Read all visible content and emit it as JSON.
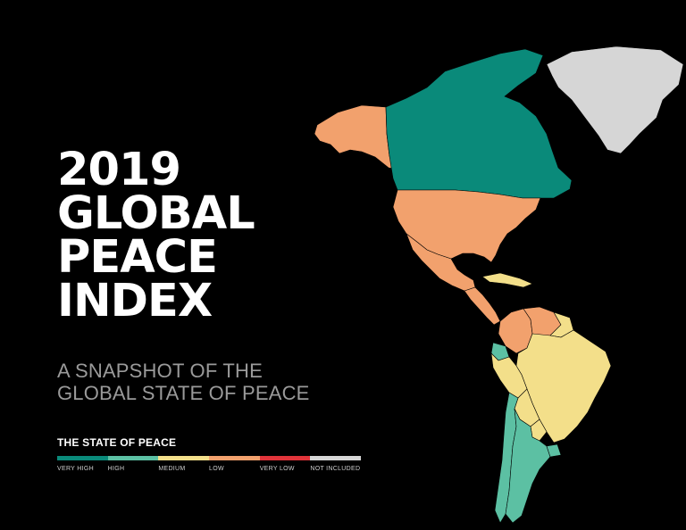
{
  "title": {
    "lines": [
      "2019",
      "GLOBAL",
      "PEACE",
      "INDEX"
    ]
  },
  "subtitle": {
    "lines": [
      "A SNAPSHOT OF THE",
      "GLOBAL STATE OF PEACE"
    ]
  },
  "legend": {
    "title": "THE STATE OF PEACE",
    "levels": [
      {
        "label": "VERY HIGH",
        "color": "#0a8a7a"
      },
      {
        "label": "HIGH",
        "color": "#5cc0a3"
      },
      {
        "label": "MEDIUM",
        "color": "#f3df8a"
      },
      {
        "label": "LOW",
        "color": "#f2a16d"
      },
      {
        "label": "VERY LOW",
        "color": "#e0343a"
      },
      {
        "label": "NOT INCLUDED",
        "color": "#d6d6d6"
      }
    ]
  },
  "regions": [
    {
      "name": "Canada",
      "level": "VERY HIGH"
    },
    {
      "name": "Greenland",
      "level": "NOT INCLUDED"
    },
    {
      "name": "Alaska (USA)",
      "level": "LOW"
    },
    {
      "name": "United States",
      "level": "LOW"
    },
    {
      "name": "Mexico",
      "level": "LOW"
    },
    {
      "name": "Central America",
      "level": "LOW"
    },
    {
      "name": "Cuba",
      "level": "MEDIUM"
    },
    {
      "name": "Colombia",
      "level": "LOW"
    },
    {
      "name": "Venezuela",
      "level": "LOW"
    },
    {
      "name": "Guianas",
      "level": "MEDIUM"
    },
    {
      "name": "Ecuador",
      "level": "HIGH"
    },
    {
      "name": "Peru",
      "level": "MEDIUM"
    },
    {
      "name": "Brazil",
      "level": "MEDIUM"
    },
    {
      "name": "Bolivia",
      "level": "MEDIUM"
    },
    {
      "name": "Paraguay",
      "level": "MEDIUM"
    },
    {
      "name": "Chile",
      "level": "HIGH"
    },
    {
      "name": "Argentina",
      "level": "HIGH"
    },
    {
      "name": "Uruguay",
      "level": "HIGH"
    }
  ]
}
